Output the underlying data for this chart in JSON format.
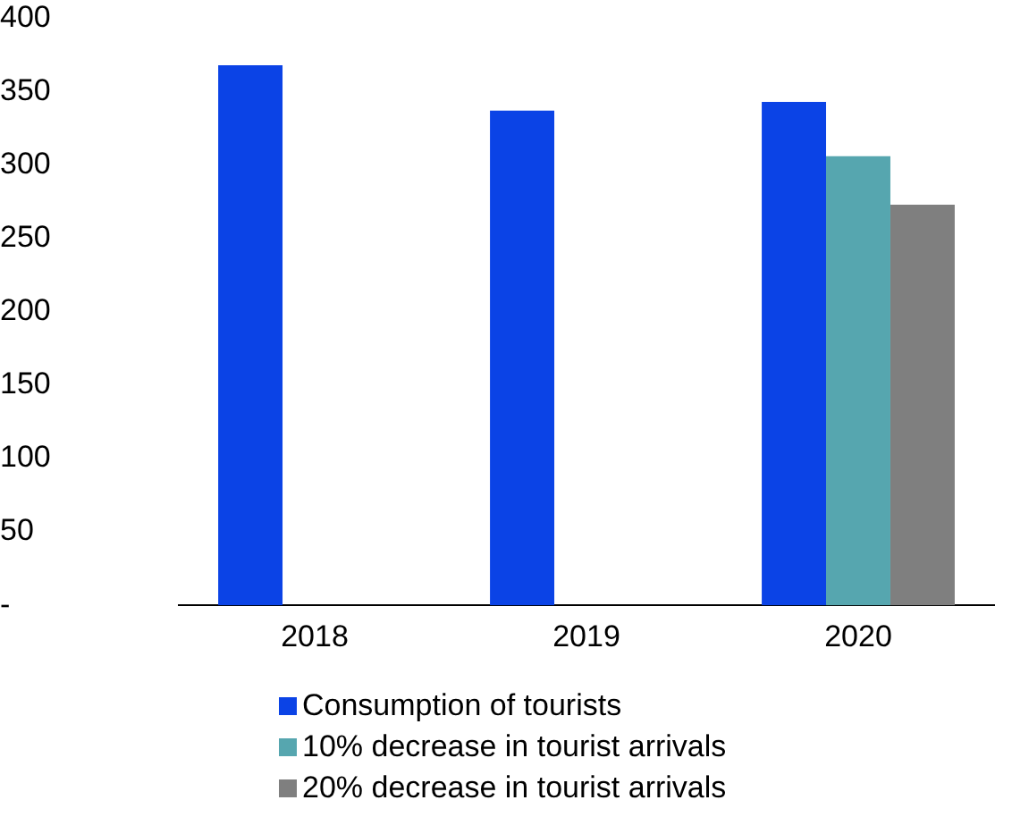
{
  "chart_data": {
    "type": "bar",
    "categories": [
      "2018",
      "2019",
      "2020"
    ],
    "series": [
      {
        "name": "Consumption of tourists",
        "color": "#0b43e6",
        "values": [
          368,
          337,
          343
        ]
      },
      {
        "name": "10% decrease in tourist arrivals",
        "color": "#56a6af",
        "values": [
          null,
          null,
          306
        ]
      },
      {
        "name": "20% decrease in tourist arrivals",
        "color": "#7f7f7f",
        "values": [
          null,
          null,
          273
        ]
      }
    ],
    "ylim": [
      0,
      400
    ],
    "yticks": [
      {
        "value": 0,
        "label": "-"
      },
      50,
      100,
      150,
      200,
      250,
      300,
      350,
      400
    ],
    "grid": false,
    "legend": "bottom"
  }
}
